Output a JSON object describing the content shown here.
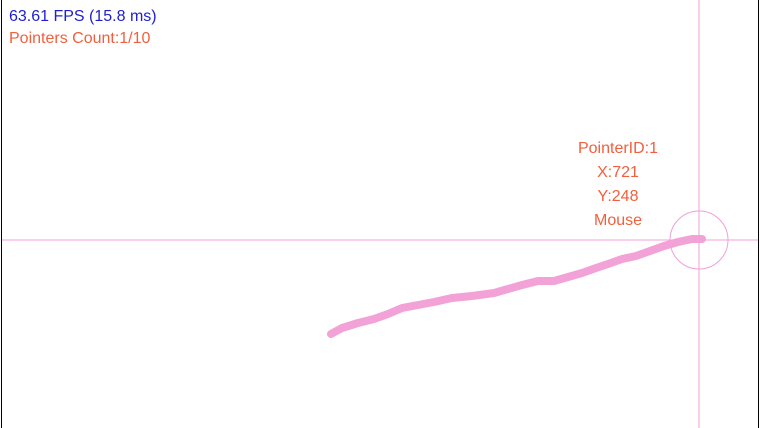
{
  "hud": {
    "fps_text": "63.61 FPS (15.8 ms)",
    "pointers_count_text": "Pointers Count:1/10"
  },
  "pointer": {
    "id_text": "PointerID:1",
    "x_text": "X:721",
    "y_text": "Y:248",
    "device_text": "Mouse"
  },
  "colors": {
    "fps": "#1f1fcc",
    "pointer_text": "#f0603e",
    "crosshair": "#f0a0d8",
    "trail": "#f2a2d6",
    "border": "#000000"
  }
}
